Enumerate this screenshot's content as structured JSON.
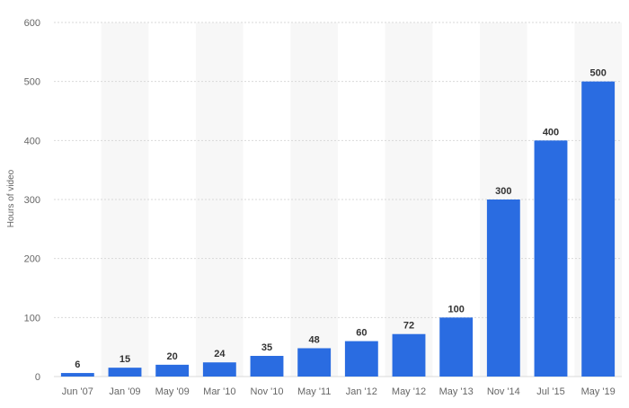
{
  "chart_data": {
    "type": "bar",
    "ylabel": "Hours of video",
    "xlabel": "",
    "ylim": [
      0,
      600
    ],
    "yticks": [
      0,
      100,
      200,
      300,
      400,
      500,
      600
    ],
    "grid": true,
    "categories": [
      "Jun '07",
      "Jan '09",
      "May '09",
      "Mar '10",
      "Nov '10",
      "May '11",
      "Jan '12",
      "May '12",
      "May '13",
      "Nov '14",
      "Jul '15",
      "May '19"
    ],
    "values": [
      6,
      15,
      20,
      24,
      35,
      48,
      60,
      72,
      100,
      300,
      400,
      500
    ],
    "bar_color": "#2a6ce1",
    "band_color": "#f7f7f7",
    "grid_color": "#d9d9d9"
  }
}
